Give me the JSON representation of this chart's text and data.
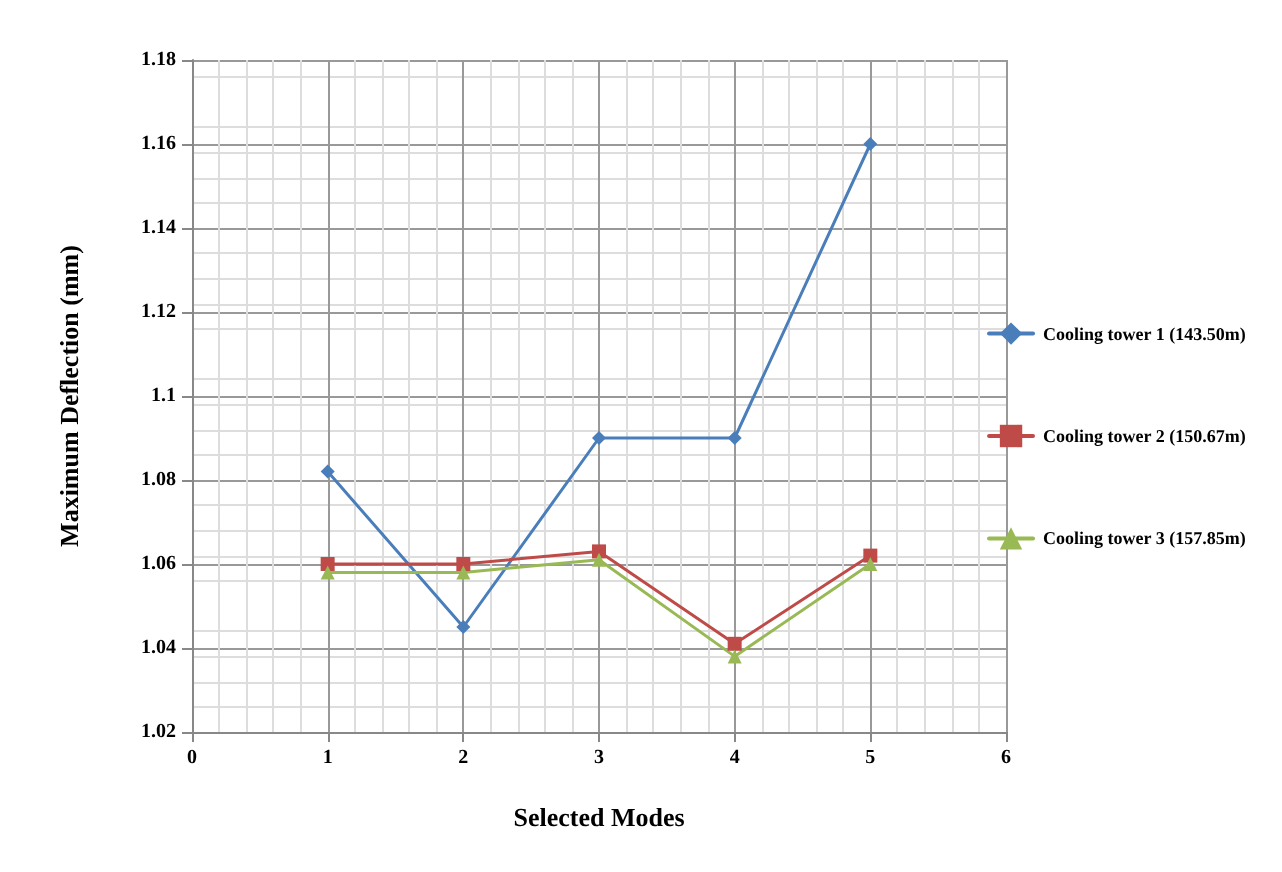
{
  "chart_data": {
    "type": "line",
    "xlabel": "Selected Modes",
    "ylabel": "Maximum Deflection (mm)",
    "x": [
      1,
      2,
      3,
      4,
      5
    ],
    "series": [
      {
        "name": "Cooling tower 1 (143.50m)",
        "color": "#4a7ebb",
        "marker": "diamond",
        "values": [
          1.082,
          1.045,
          1.09,
          1.09,
          1.16
        ]
      },
      {
        "name": "Cooling tower 2 (150.67m)",
        "color": "#be4b48",
        "marker": "square",
        "values": [
          1.06,
          1.06,
          1.063,
          1.041,
          1.062
        ]
      },
      {
        "name": "Cooling tower 3 (157.85m)",
        "color": "#98b954",
        "marker": "triangle",
        "values": [
          1.058,
          1.058,
          1.061,
          1.038,
          1.06
        ]
      }
    ],
    "xlim": [
      0,
      6
    ],
    "xticks": [
      0,
      1,
      2,
      3,
      4,
      5,
      6
    ],
    "ylim": [
      1.02,
      1.18
    ],
    "yticks": [
      1.02,
      1.04,
      1.06,
      1.08,
      1.1,
      1.12,
      1.14,
      1.16,
      1.18
    ],
    "grid": true,
    "legend": "right",
    "line_style": "solid"
  }
}
